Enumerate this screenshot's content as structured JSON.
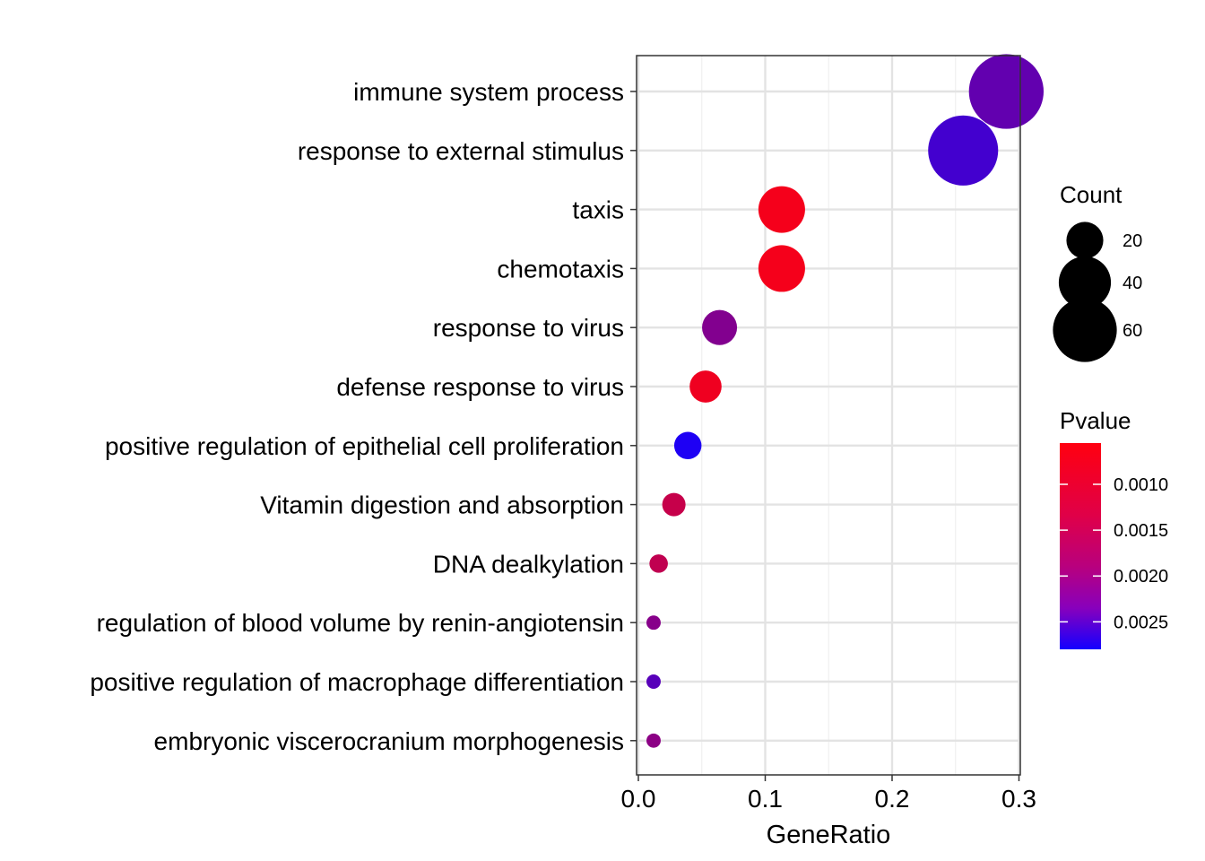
{
  "chart_data": {
    "type": "scatter",
    "xlabel": "GeneRatio",
    "ylabel": "",
    "xlim": [
      0.0,
      0.3
    ],
    "x_ticks": [
      0.0,
      0.1,
      0.2,
      0.3
    ],
    "x_tick_labels": [
      "0.0",
      "0.1",
      "0.2",
      "0.3"
    ],
    "grid": true,
    "legend_position": "right",
    "categories": [
      "immune system process",
      "response to external stimulus",
      "taxis",
      "chemotaxis",
      "response to virus",
      "defense response to virus",
      "positive regulation of epithelial cell proliferation",
      "Vitamin digestion and absorption",
      "DNA dealkylation",
      "regulation of blood volume by renin-angiotensin",
      "positive regulation of macrophage differentiation",
      "embryonic viscerocranium morphogenesis"
    ],
    "points": [
      {
        "term": "immune system process",
        "gene_ratio": 0.29,
        "count": 82,
        "pvalue": 0.00205
      },
      {
        "term": "response to external stimulus",
        "gene_ratio": 0.256,
        "count": 72,
        "pvalue": 0.00235
      },
      {
        "term": "taxis",
        "gene_ratio": 0.113,
        "count": 32,
        "pvalue": 0.00065
      },
      {
        "term": "chemotaxis",
        "gene_ratio": 0.113,
        "count": 32,
        "pvalue": 0.00065
      },
      {
        "term": "response to virus",
        "gene_ratio": 0.064,
        "count": 18,
        "pvalue": 0.00175
      },
      {
        "term": "defense response to virus",
        "gene_ratio": 0.053,
        "count": 15,
        "pvalue": 0.0007
      },
      {
        "term": "positive regulation of epithelial cell proliferation",
        "gene_ratio": 0.039,
        "count": 11,
        "pvalue": 0.0027
      },
      {
        "term": "Vitamin digestion and absorption",
        "gene_ratio": 0.028,
        "count": 8,
        "pvalue": 0.0011
      },
      {
        "term": "DNA dealkylation",
        "gene_ratio": 0.016,
        "count": 5,
        "pvalue": 0.00115
      },
      {
        "term": "regulation of blood volume by renin-angiotensin",
        "gene_ratio": 0.012,
        "count": 3,
        "pvalue": 0.0017
      },
      {
        "term": "positive regulation of macrophage differentiation",
        "gene_ratio": 0.012,
        "count": 3,
        "pvalue": 0.00215
      },
      {
        "term": "embryonic viscerocranium morphogenesis",
        "gene_ratio": 0.012,
        "count": 3,
        "pvalue": 0.00165
      }
    ],
    "size_legend": {
      "title": "Count",
      "values": [
        20,
        40,
        60
      ],
      "labels": [
        "20",
        "40",
        "60"
      ]
    },
    "color_legend": {
      "title": "Pvalue",
      "range": [
        0.00055,
        0.0028
      ],
      "ticks": [
        0.001,
        0.0015,
        0.002,
        0.0025
      ],
      "labels": [
        "0.0010",
        "0.0015",
        "0.0020",
        "0.0025"
      ],
      "low_color": "#ff0010",
      "high_color": "#1400ff"
    }
  }
}
